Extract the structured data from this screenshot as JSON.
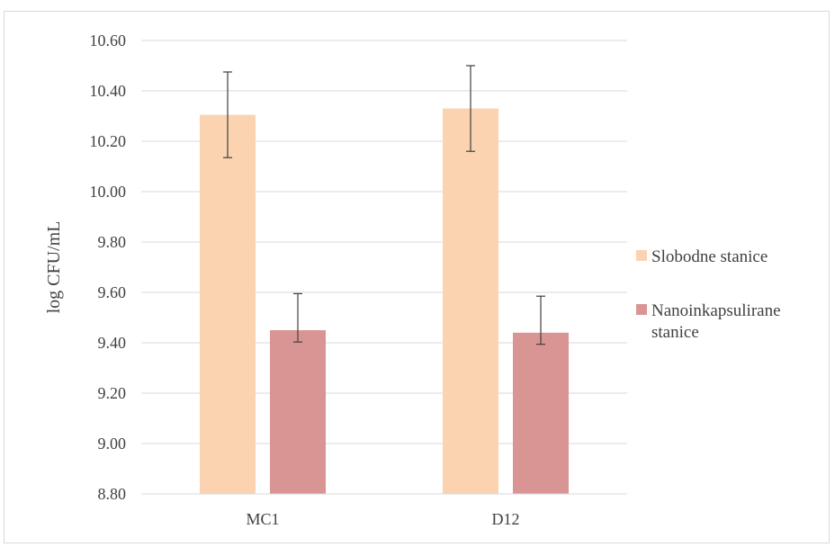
{
  "chart_data": {
    "type": "bar",
    "categories": [
      "MC1",
      "D12"
    ],
    "series": [
      {
        "name": "Slobodne stanice",
        "color": "#FBD3B0",
        "values": [
          10.305,
          10.33
        ],
        "error": [
          0.17,
          0.17
        ]
      },
      {
        "name": "Nanoinkapsulirane stanice",
        "color": "#D99594",
        "values": [
          9.45,
          9.44
        ],
        "error": [
          0.047,
          0.046
        ],
        "error_upper": [
          0.145,
          0.145
        ]
      }
    ],
    "title": "",
    "xlabel": "",
    "ylabel": "log CFU/mL",
    "ylim": [
      8.8,
      10.6
    ],
    "yticks": [
      "8.80",
      "9.00",
      "9.20",
      "9.40",
      "9.60",
      "9.80",
      "10.00",
      "10.20",
      "10.40",
      "10.60"
    ],
    "grid": true,
    "legend_position": "right"
  }
}
